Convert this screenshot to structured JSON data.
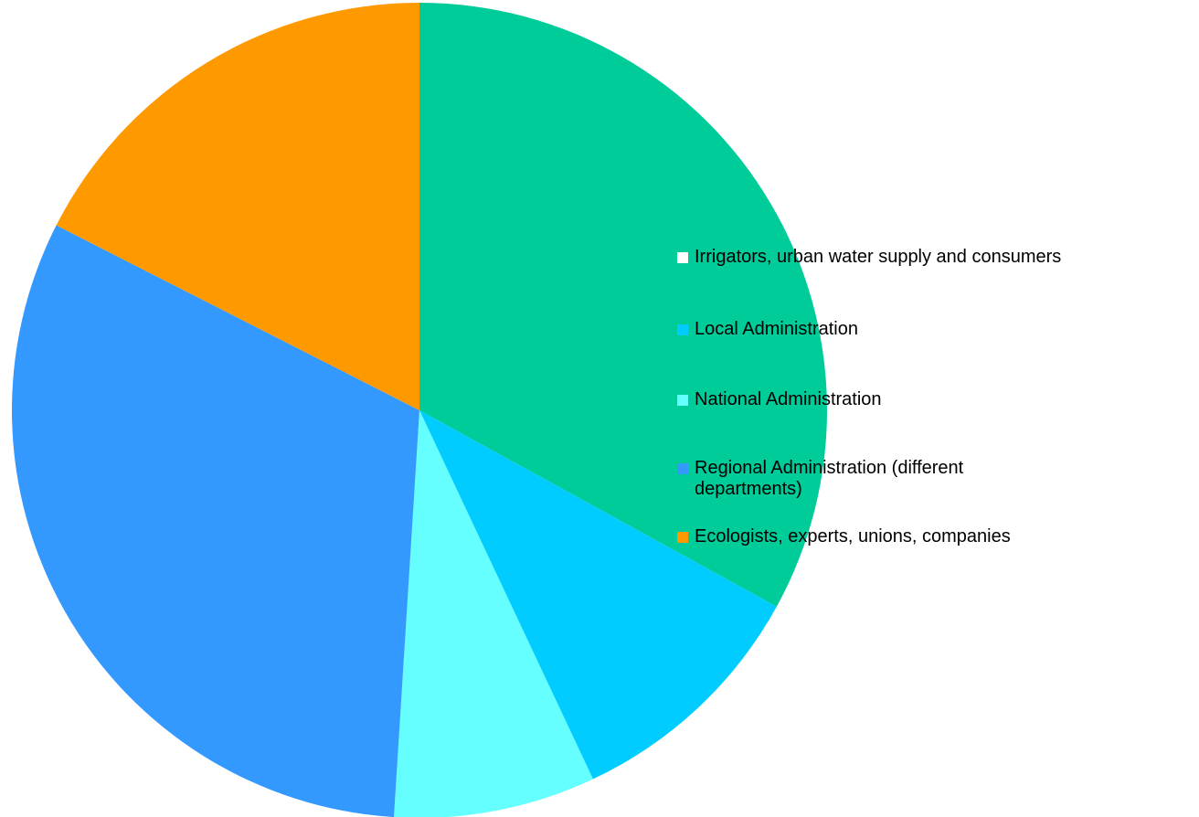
{
  "chart_data": {
    "type": "pie",
    "start_angle_deg": 0,
    "direction": "clockwise",
    "legend_position": "right",
    "slices": [
      {
        "label": "Irrigators, urban water supply and consumers",
        "value": 33.0,
        "color": "#00CC99",
        "swatch_color": "#FFFFFF"
      },
      {
        "label": "Local Administration",
        "value": 10.0,
        "color": "#00CCFF",
        "swatch_color": "#00CCFF"
      },
      {
        "label": "National Administration",
        "value": 8.0,
        "color": "#66FFFF",
        "swatch_color": "#66FFFF"
      },
      {
        "label": "Regional Administration (different departments)",
        "value": 31.5,
        "color": "#3399FF",
        "swatch_color": "#3399FF"
      },
      {
        "label": "Ecologists, experts, unions, companies",
        "value": 17.5,
        "color": "#FF9900",
        "swatch_color": "#FF9900"
      }
    ]
  }
}
